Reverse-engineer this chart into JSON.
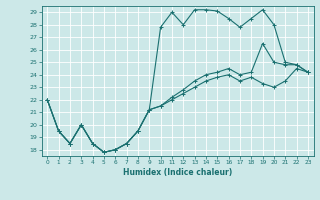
{
  "xlabel": "Humidex (Indice chaleur)",
  "bg_color": "#cce8e8",
  "grid_color": "#ffffff",
  "line_color": "#1a7070",
  "xlim": [
    -0.5,
    23.5
  ],
  "ylim": [
    17.5,
    29.5
  ],
  "xticks": [
    0,
    1,
    2,
    3,
    4,
    5,
    6,
    7,
    8,
    9,
    10,
    11,
    12,
    13,
    14,
    15,
    16,
    17,
    18,
    19,
    20,
    21,
    22,
    23
  ],
  "yticks": [
    18,
    19,
    20,
    21,
    22,
    23,
    24,
    25,
    26,
    27,
    28,
    29
  ],
  "line1_x": [
    0,
    1,
    2,
    3,
    4,
    5,
    6,
    7,
    8,
    9,
    10,
    11,
    12,
    13,
    14,
    15,
    16,
    17,
    18,
    19,
    20,
    21,
    22,
    23
  ],
  "line1_y": [
    22,
    19.5,
    18.5,
    20.0,
    18.5,
    17.8,
    18.0,
    18.5,
    19.5,
    21.2,
    27.8,
    29.0,
    28.0,
    29.2,
    29.2,
    29.1,
    28.5,
    27.8,
    28.5,
    29.2,
    28.0,
    25.0,
    24.8,
    24.2
  ],
  "line2_x": [
    0,
    1,
    2,
    3,
    4,
    5,
    6,
    7,
    8,
    9,
    10,
    11,
    12,
    13,
    14,
    15,
    16,
    17,
    18,
    19,
    20,
    21,
    22,
    23
  ],
  "line2_y": [
    22,
    19.5,
    18.5,
    20.0,
    18.5,
    17.8,
    18.0,
    18.5,
    19.5,
    21.2,
    21.5,
    22.0,
    22.5,
    23.0,
    23.5,
    23.8,
    24.0,
    23.5,
    23.8,
    23.3,
    23.0,
    23.5,
    24.5,
    24.2
  ],
  "line3_x": [
    0,
    1,
    2,
    3,
    4,
    5,
    6,
    7,
    8,
    9,
    10,
    11,
    12,
    13,
    14,
    15,
    16,
    17,
    18,
    19,
    20,
    21,
    22,
    23
  ],
  "line3_y": [
    22,
    19.5,
    18.5,
    20.0,
    18.5,
    17.8,
    18.0,
    18.5,
    19.5,
    21.2,
    21.5,
    22.2,
    22.8,
    23.5,
    24.0,
    24.2,
    24.5,
    24.0,
    24.2,
    26.5,
    25.0,
    24.8,
    24.8,
    24.2
  ]
}
